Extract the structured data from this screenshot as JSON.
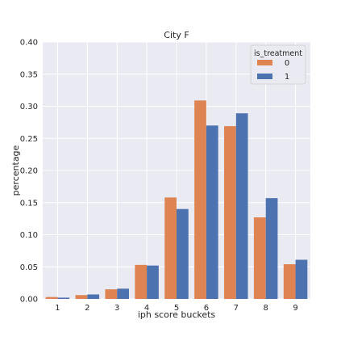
{
  "chart_data": {
    "type": "bar",
    "title": "City F",
    "xlabel": "iph score buckets",
    "ylabel": "percentage",
    "categories": [
      "1",
      "2",
      "3",
      "4",
      "5",
      "6",
      "7",
      "8",
      "9"
    ],
    "ylim": [
      0,
      0.4
    ],
    "yticks": [
      "0.00",
      "0.05",
      "0.10",
      "0.15",
      "0.20",
      "0.25",
      "0.30",
      "0.35",
      "0.40"
    ],
    "grid": true,
    "legend": {
      "title": "is_treatment",
      "placement": "top-right"
    },
    "series": [
      {
        "name": "0",
        "color": "#dd8452",
        "values": [
          0.003,
          0.006,
          0.015,
          0.053,
          0.158,
          0.309,
          0.269,
          0.127,
          0.054
        ]
      },
      {
        "name": "1",
        "color": "#4c72b0",
        "values": [
          0.002,
          0.007,
          0.016,
          0.052,
          0.14,
          0.27,
          0.289,
          0.157,
          0.061
        ]
      }
    ]
  }
}
